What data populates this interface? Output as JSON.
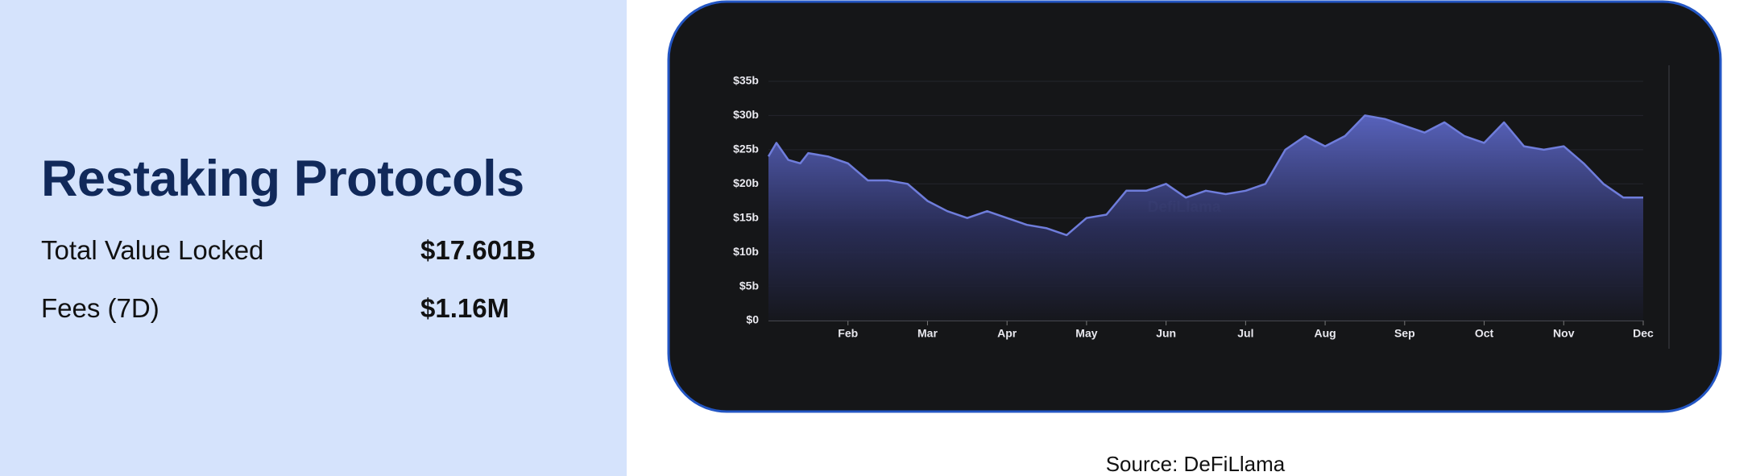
{
  "header": {
    "title": "Restaking Protocols"
  },
  "stats": [
    {
      "label": "Total Value Locked",
      "value": "$17.601B"
    },
    {
      "label": "Fees (7D)",
      "value": "$1.16M"
    }
  ],
  "source": "Source: DeFiLlama",
  "chart_data": {
    "type": "area",
    "watermark": "DefiLlama",
    "x": [
      0,
      0.1,
      0.25,
      0.4,
      0.5,
      0.75,
      1,
      1.1,
      1.25,
      1.5,
      1.75,
      2,
      2.25,
      2.5,
      2.75,
      3,
      3.25,
      3.5,
      3.75,
      4,
      4.25,
      4.5,
      4.75,
      5,
      5.25,
      5.5,
      5.75,
      6,
      6.25,
      6.5,
      6.75,
      7,
      7.25,
      7.5,
      7.75,
      8,
      8.25,
      8.5,
      8.75,
      9,
      9.25,
      9.5,
      9.75,
      10,
      10.25,
      10.5,
      10.75,
      11
    ],
    "series": [
      {
        "color": "#6f7ddb",
        "values": [
          24,
          26,
          23.5,
          23,
          24.5,
          24,
          23,
          22,
          20.5,
          20.5,
          20,
          17.5,
          16,
          15,
          16,
          15,
          14,
          13.5,
          12.5,
          15,
          15.5,
          19,
          19,
          20,
          18,
          19,
          18.5,
          19,
          20,
          25,
          27,
          25.5,
          27,
          30,
          29.5,
          28.5,
          27.5,
          29,
          27,
          26,
          29,
          25.5,
          25,
          25.5,
          23,
          20,
          18,
          18
        ]
      }
    ],
    "xlim": [
      0,
      11
    ],
    "xticks": [
      {
        "value": 1,
        "label": "Feb"
      },
      {
        "value": 2,
        "label": "Mar"
      },
      {
        "value": 3,
        "label": "Apr"
      },
      {
        "value": 4,
        "label": "May"
      },
      {
        "value": 5,
        "label": "Jun"
      },
      {
        "value": 6,
        "label": "Jul"
      },
      {
        "value": 7,
        "label": "Aug"
      },
      {
        "value": 8,
        "label": "Sep"
      },
      {
        "value": 9,
        "label": "Oct"
      },
      {
        "value": 10,
        "label": "Nov"
      },
      {
        "value": 11,
        "label": "Dec"
      }
    ],
    "ylim": [
      0,
      35
    ],
    "yticks": [
      {
        "value": 0,
        "label": "$0"
      },
      {
        "value": 5,
        "label": "$5b"
      },
      {
        "value": 10,
        "label": "$10b"
      },
      {
        "value": 15,
        "label": "$15b"
      },
      {
        "value": 20,
        "label": "$20b"
      },
      {
        "value": 25,
        "label": "$25b"
      },
      {
        "value": 30,
        "label": "$30b"
      },
      {
        "value": 35,
        "label": "$35b"
      }
    ],
    "grid": true
  }
}
